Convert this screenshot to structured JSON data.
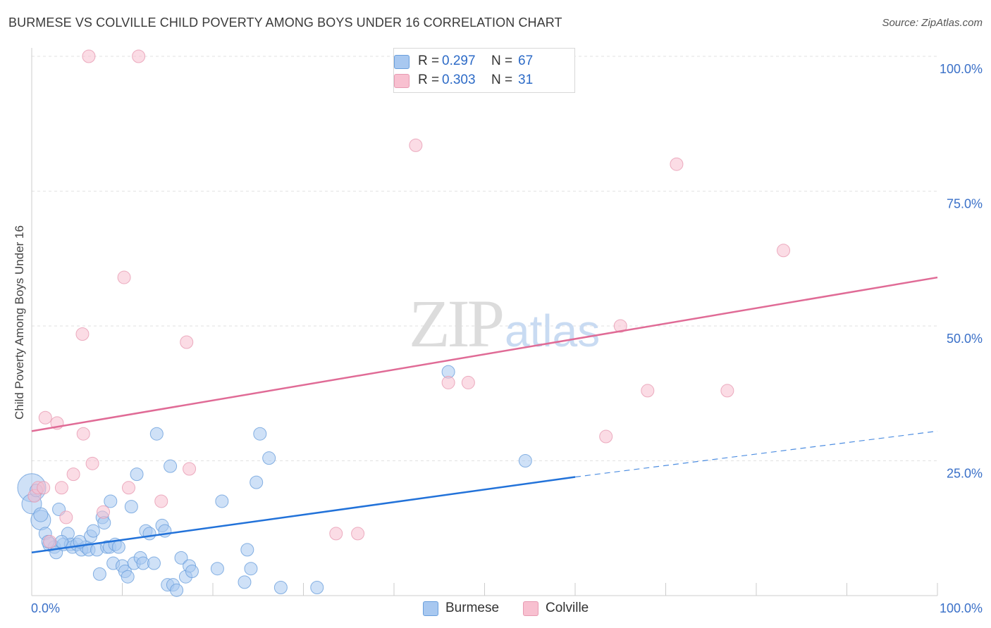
{
  "title": "BURMESE VS COLVILLE CHILD POVERTY AMONG BOYS UNDER 16 CORRELATION CHART",
  "source": "Source: ZipAtlas.com",
  "watermark": {
    "zip": "ZIP",
    "atlas": "atlas"
  },
  "colors": {
    "burmese_fill": "#a8c8f0",
    "burmese_stroke": "#6a9fdc",
    "burmese_line": "#2272d9",
    "colville_fill": "#f8c0d0",
    "colville_stroke": "#e79ab2",
    "colville_line": "#e06b96",
    "axis_label": "#3a70c8",
    "grid": "#e2e2e2"
  },
  "legend": {
    "r_label": "R =",
    "n_label": "N =",
    "items": [
      {
        "name": "Burmese",
        "r": "0.297",
        "n": "67"
      },
      {
        "name": "Colville",
        "r": "0.303",
        "n": "31"
      }
    ]
  },
  "chart_data": {
    "type": "scatter",
    "title": "BURMESE VS COLVILLE CHILD POVERTY AMONG BOYS UNDER 16 CORRELATION CHART",
    "xlabel": "",
    "ylabel": "Child Poverty Among Boys Under 16",
    "xlim": [
      0,
      100
    ],
    "ylim": [
      0,
      100
    ],
    "x_tick_labels": [
      "0.0%",
      "100.0%"
    ],
    "y_tick_labels": [
      "25.0%",
      "50.0%",
      "75.0%",
      "100.0%"
    ],
    "y_ticks": [
      25,
      50,
      75,
      100
    ],
    "grid": true,
    "series": [
      {
        "name": "Burmese",
        "trend": {
          "x0": 0,
          "y0": 8.0,
          "x1": 60,
          "y1": 22.0,
          "dash_to_x": 100,
          "dash_to_y": 30.5
        },
        "points": [
          {
            "x": 0,
            "y": 20,
            "s": 20
          },
          {
            "x": 0,
            "y": 17,
            "s": 14
          },
          {
            "x": 1,
            "y": 14,
            "s": 14
          },
          {
            "x": 1,
            "y": 15,
            "s": 10
          },
          {
            "x": 1.5,
            "y": 11.5,
            "s": 9
          },
          {
            "x": 2,
            "y": 9.5,
            "s": 10
          },
          {
            "x": 2.5,
            "y": 9,
            "s": 9
          },
          {
            "x": 2.7,
            "y": 8,
            "s": 9
          },
          {
            "x": 3,
            "y": 16,
            "s": 9
          },
          {
            "x": 3.5,
            "y": 9.5,
            "s": 9
          },
          {
            "x": 4,
            "y": 11.5,
            "s": 9
          },
          {
            "x": 4.3,
            "y": 9.5,
            "s": 9
          },
          {
            "x": 4.5,
            "y": 9,
            "s": 9
          },
          {
            "x": 5,
            "y": 9.5,
            "s": 9
          },
          {
            "x": 5.5,
            "y": 8.5,
            "s": 9
          },
          {
            "x": 6,
            "y": 9,
            "s": 9
          },
          {
            "x": 6.3,
            "y": 8.5,
            "s": 9
          },
          {
            "x": 6.5,
            "y": 11,
            "s": 9
          },
          {
            "x": 6.8,
            "y": 12,
            "s": 9
          },
          {
            "x": 7.2,
            "y": 8.5,
            "s": 9
          },
          {
            "x": 7.5,
            "y": 4,
            "s": 9
          },
          {
            "x": 7.8,
            "y": 14.5,
            "s": 9
          },
          {
            "x": 8,
            "y": 13.5,
            "s": 9
          },
          {
            "x": 8.3,
            "y": 9,
            "s": 9
          },
          {
            "x": 8.6,
            "y": 9,
            "s": 9
          },
          {
            "x": 8.7,
            "y": 17.5,
            "s": 9
          },
          {
            "x": 9,
            "y": 6,
            "s": 9
          },
          {
            "x": 9.2,
            "y": 9.5,
            "s": 9
          },
          {
            "x": 9.6,
            "y": 9,
            "s": 9
          },
          {
            "x": 10,
            "y": 5.5,
            "s": 9
          },
          {
            "x": 10.3,
            "y": 4.5,
            "s": 9
          },
          {
            "x": 10.6,
            "y": 3.5,
            "s": 9
          },
          {
            "x": 11,
            "y": 16.5,
            "s": 9
          },
          {
            "x": 11.3,
            "y": 6,
            "s": 9
          },
          {
            "x": 11.6,
            "y": 22.5,
            "s": 9
          },
          {
            "x": 12,
            "y": 7,
            "s": 9
          },
          {
            "x": 12.3,
            "y": 6,
            "s": 9
          },
          {
            "x": 12.6,
            "y": 12,
            "s": 9
          },
          {
            "x": 13,
            "y": 11.5,
            "s": 9
          },
          {
            "x": 13.5,
            "y": 6,
            "s": 9
          },
          {
            "x": 13.8,
            "y": 30,
            "s": 9
          },
          {
            "x": 14.4,
            "y": 13,
            "s": 9
          },
          {
            "x": 14.7,
            "y": 12,
            "s": 9
          },
          {
            "x": 15,
            "y": 2,
            "s": 9
          },
          {
            "x": 15.3,
            "y": 24,
            "s": 9
          },
          {
            "x": 15.6,
            "y": 2,
            "s": 9
          },
          {
            "x": 16,
            "y": 1,
            "s": 9
          },
          {
            "x": 16.5,
            "y": 7,
            "s": 9
          },
          {
            "x": 17,
            "y": 3.5,
            "s": 9
          },
          {
            "x": 17.4,
            "y": 5.5,
            "s": 9
          },
          {
            "x": 17.7,
            "y": 4.5,
            "s": 9
          },
          {
            "x": 20.5,
            "y": 5,
            "s": 9
          },
          {
            "x": 21,
            "y": 17.5,
            "s": 9
          },
          {
            "x": 23.5,
            "y": 2.5,
            "s": 9
          },
          {
            "x": 23.8,
            "y": 8.5,
            "s": 9
          },
          {
            "x": 24.2,
            "y": 5,
            "s": 9
          },
          {
            "x": 24.8,
            "y": 21,
            "s": 9
          },
          {
            "x": 25.2,
            "y": 30,
            "s": 9
          },
          {
            "x": 26.2,
            "y": 25.5,
            "s": 9
          },
          {
            "x": 27.5,
            "y": 1.5,
            "s": 9
          },
          {
            "x": 31.5,
            "y": 1.5,
            "s": 9
          },
          {
            "x": 46,
            "y": 41.5,
            "s": 9
          },
          {
            "x": 54.5,
            "y": 25,
            "s": 9
          },
          {
            "x": 0.5,
            "y": 19.5,
            "s": 9
          },
          {
            "x": 1.8,
            "y": 10,
            "s": 9
          },
          {
            "x": 3.3,
            "y": 10,
            "s": 9
          },
          {
            "x": 5.3,
            "y": 10,
            "s": 9
          }
        ]
      },
      {
        "name": "Colville",
        "trend": {
          "x0": 0,
          "y0": 30.5,
          "x1": 100,
          "y1": 59.0
        },
        "points": [
          {
            "x": 0.3,
            "y": 18.5,
            "s": 9
          },
          {
            "x": 0.7,
            "y": 20,
            "s": 9
          },
          {
            "x": 1.3,
            "y": 20,
            "s": 9
          },
          {
            "x": 1.5,
            "y": 33,
            "s": 9
          },
          {
            "x": 2,
            "y": 10,
            "s": 9
          },
          {
            "x": 2.8,
            "y": 32,
            "s": 9
          },
          {
            "x": 3.3,
            "y": 20,
            "s": 9
          },
          {
            "x": 3.8,
            "y": 14.5,
            "s": 9
          },
          {
            "x": 4.6,
            "y": 22.5,
            "s": 9
          },
          {
            "x": 5.6,
            "y": 48.5,
            "s": 9
          },
          {
            "x": 5.7,
            "y": 30,
            "s": 9
          },
          {
            "x": 6.3,
            "y": 100,
            "s": 9
          },
          {
            "x": 6.7,
            "y": 24.5,
            "s": 9
          },
          {
            "x": 7.9,
            "y": 15.5,
            "s": 9
          },
          {
            "x": 10.2,
            "y": 59,
            "s": 9
          },
          {
            "x": 10.7,
            "y": 20,
            "s": 9
          },
          {
            "x": 11.8,
            "y": 100,
            "s": 9
          },
          {
            "x": 14.3,
            "y": 17.5,
            "s": 9
          },
          {
            "x": 17.1,
            "y": 47,
            "s": 9
          },
          {
            "x": 17.4,
            "y": 23.5,
            "s": 9
          },
          {
            "x": 33.6,
            "y": 11.5,
            "s": 9
          },
          {
            "x": 36,
            "y": 11.5,
            "s": 9
          },
          {
            "x": 42.4,
            "y": 83.5,
            "s": 9
          },
          {
            "x": 46,
            "y": 39.5,
            "s": 9
          },
          {
            "x": 48.2,
            "y": 39.5,
            "s": 9
          },
          {
            "x": 63.4,
            "y": 29.5,
            "s": 9
          },
          {
            "x": 65,
            "y": 50,
            "s": 9
          },
          {
            "x": 68,
            "y": 38,
            "s": 9
          },
          {
            "x": 71.2,
            "y": 80,
            "s": 9
          },
          {
            "x": 76.8,
            "y": 38,
            "s": 9
          },
          {
            "x": 83,
            "y": 64,
            "s": 9
          }
        ]
      }
    ]
  }
}
